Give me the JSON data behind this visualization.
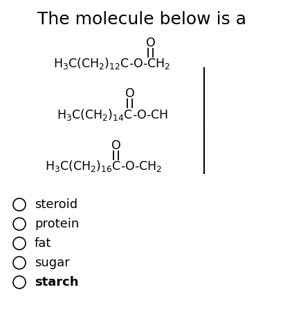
{
  "title": "The molecule below is a",
  "title_fontsize": 18,
  "background_color": "#ffffff",
  "line_color": "#000000",
  "text_color": "#000000",
  "formula_fontsize": 12.5,
  "options_fontsize": 13,
  "options_bold": [
    false,
    false,
    false,
    false,
    true
  ],
  "option_texts": [
    "steroid",
    "protein",
    "fat",
    "sugar",
    "starch"
  ]
}
